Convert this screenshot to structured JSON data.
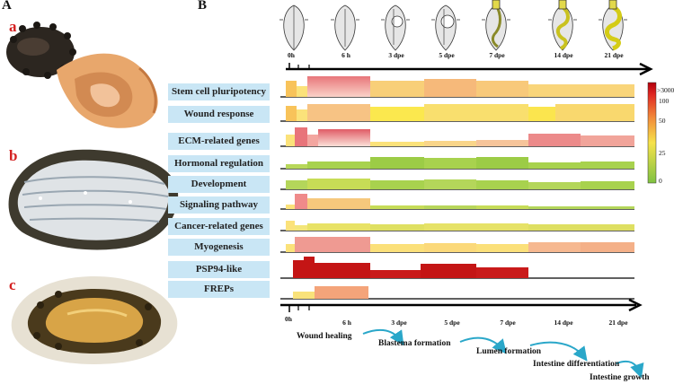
{
  "panels": {
    "a": "A",
    "b": "B"
  },
  "photos": [
    {
      "letter": "a",
      "label_color": "#d42020"
    },
    {
      "letter": "b",
      "label_color": "#d42020"
    },
    {
      "letter": "c",
      "label_color": "#d42020"
    }
  ],
  "timeline_top_labels": [
    "0h",
    "6 h",
    "3 dpe",
    "5 dpe",
    "7 dpe",
    "14 dpe",
    "21 dpe"
  ],
  "timeline_bottom_labels": [
    "0h",
    "6 h",
    "3 dpe",
    "5 dpe",
    "7 dpe",
    "14 dpe",
    "21 dpe"
  ],
  "categories": [
    "Stem cell pluripotency",
    "Wound response",
    "ECM-related genes",
    "Hormonal regulation",
    "Development",
    "Signaling pathway",
    "Cancer-related genes",
    "Myogenesis",
    "PSP94-like",
    "FREPs"
  ],
  "legend": {
    "ticks": [
      ">3000",
      "100",
      "50",
      "25",
      "0"
    ]
  },
  "stages": [
    "Wound healing",
    "Blastema formation",
    "Lumen formation",
    "Intestine differentiation",
    "Intestine growth"
  ],
  "colors": {
    "label_bg": "#c9e6f5",
    "arrow": "#2aa7c9",
    "high": "#c41515",
    "mid": "#f2c04e",
    "low": "#8ec63f"
  }
}
